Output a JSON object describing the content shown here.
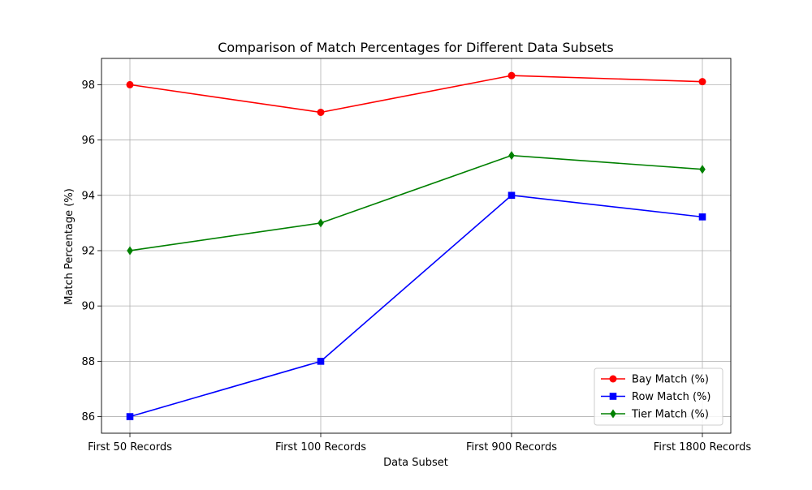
{
  "chart_data": {
    "type": "line",
    "title": "Comparison of Match Percentages for Different Data Subsets",
    "xlabel": "Data Subset",
    "ylabel": "Match Percentage (%)",
    "categories": [
      "First 50 Records",
      "First 100 Records",
      "First 900 Records",
      "First 1800 Records"
    ],
    "ylim": [
      85.4,
      98.95
    ],
    "yticks": [
      86,
      88,
      90,
      92,
      94,
      96,
      98
    ],
    "grid": true,
    "legend_position": "lower-right",
    "series": [
      {
        "name": "Bay Match (%)",
        "color": "#ff0000",
        "marker": "circle",
        "values": [
          98.0,
          97.0,
          98.33,
          98.11
        ]
      },
      {
        "name": "Row Match (%)",
        "color": "#0000ff",
        "marker": "square",
        "values": [
          86.0,
          88.0,
          94.0,
          93.22
        ]
      },
      {
        "name": "Tier Match (%)",
        "color": "#008000",
        "marker": "diamond",
        "values": [
          92.0,
          93.0,
          95.44,
          94.94
        ]
      }
    ]
  }
}
